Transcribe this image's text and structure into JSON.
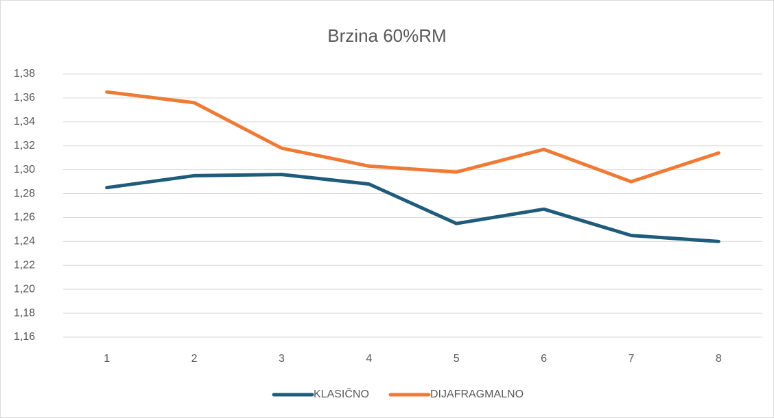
{
  "chart_data": {
    "type": "line",
    "title": "Brzina 60%RM",
    "categories": [
      "1",
      "2",
      "3",
      "4",
      "5",
      "6",
      "7",
      "8"
    ],
    "series": [
      {
        "name": "KLASIČNO",
        "color": "#1f5b7a",
        "values": [
          1.285,
          1.295,
          1.296,
          1.288,
          1.255,
          1.267,
          1.245,
          1.24
        ]
      },
      {
        "name": "DIJAFRAGMALNO",
        "color": "#ee7a35",
        "values": [
          1.365,
          1.356,
          1.318,
          1.303,
          1.298,
          1.317,
          1.29,
          1.314
        ]
      }
    ],
    "ylim": [
      1.16,
      1.38
    ],
    "yticks": [
      {
        "value": 1.16,
        "label": "1,16"
      },
      {
        "value": 1.18,
        "label": "1,18"
      },
      {
        "value": 1.2,
        "label": "1,20"
      },
      {
        "value": 1.22,
        "label": "1,22"
      },
      {
        "value": 1.24,
        "label": "1,24"
      },
      {
        "value": 1.26,
        "label": "1,26"
      },
      {
        "value": 1.28,
        "label": "1,28"
      },
      {
        "value": 1.3,
        "label": "1,30"
      },
      {
        "value": 1.32,
        "label": "1,32"
      },
      {
        "value": 1.34,
        "label": "1,34"
      },
      {
        "value": 1.36,
        "label": "1,36"
      },
      {
        "value": 1.38,
        "label": "1,38"
      }
    ],
    "grid": true,
    "legend": "bottom"
  }
}
